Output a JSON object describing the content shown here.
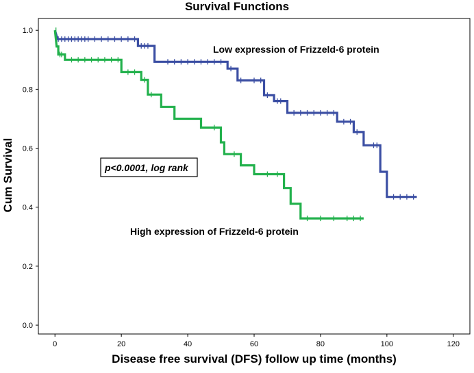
{
  "chart_data": {
    "type": "line",
    "step": true,
    "title": "Survival Functions",
    "xlabel": "Disease free survival (DFS) follow up time (months)",
    "ylabel": "Cum Survival",
    "xlim": [
      -5,
      125
    ],
    "ylim": [
      -0.03,
      1.04
    ],
    "x_ticks": [
      0,
      20,
      40,
      60,
      80,
      100,
      120
    ],
    "y_ticks": [
      0.0,
      0.2,
      0.4,
      0.6,
      0.8,
      1.0
    ],
    "y_tick_labels": [
      "0.0",
      "0.2",
      "0.4",
      "0.6",
      "0.8",
      "1.0"
    ],
    "grid": false,
    "series": [
      {
        "name": "Low expression of Frizzeld-6 protein",
        "color": "#3b4ea3",
        "points": [
          [
            0,
            1.0
          ],
          [
            0.8,
            0.97
          ],
          [
            25,
            0.97
          ],
          [
            25,
            0.947
          ],
          [
            30,
            0.947
          ],
          [
            30,
            0.893
          ],
          [
            52,
            0.893
          ],
          [
            52,
            0.87
          ],
          [
            55,
            0.87
          ],
          [
            55,
            0.83
          ],
          [
            63,
            0.83
          ],
          [
            63,
            0.78
          ],
          [
            66,
            0.78
          ],
          [
            66,
            0.76
          ],
          [
            70,
            0.76
          ],
          [
            70,
            0.72
          ],
          [
            85,
            0.72
          ],
          [
            85,
            0.69
          ],
          [
            90,
            0.69
          ],
          [
            90,
            0.655
          ],
          [
            93,
            0.655
          ],
          [
            93,
            0.61
          ],
          [
            98,
            0.61
          ],
          [
            98,
            0.52
          ],
          [
            100,
            0.52
          ],
          [
            100,
            0.435
          ],
          [
            109,
            0.435
          ]
        ],
        "censor_x": [
          1,
          2,
          3,
          4,
          5,
          6,
          7,
          8,
          9,
          10,
          12,
          14,
          16,
          18,
          20,
          22,
          24,
          26,
          27,
          28,
          34,
          36,
          38,
          40,
          42,
          44,
          46,
          48,
          50,
          53,
          56,
          60,
          62,
          64,
          67,
          68,
          72,
          74,
          76,
          78,
          80,
          82,
          84,
          87,
          89,
          91,
          96,
          97,
          102,
          104,
          106,
          108
        ]
      },
      {
        "name": "High expression of Frizzeld-6 protein",
        "color": "#22b14c",
        "points": [
          [
            0,
            1.0
          ],
          [
            0.5,
            0.945
          ],
          [
            1,
            0.945
          ],
          [
            1,
            0.918
          ],
          [
            3,
            0.918
          ],
          [
            3,
            0.9
          ],
          [
            20,
            0.9
          ],
          [
            20,
            0.858
          ],
          [
            26,
            0.858
          ],
          [
            26,
            0.832
          ],
          [
            28,
            0.832
          ],
          [
            28,
            0.782
          ],
          [
            32,
            0.782
          ],
          [
            32,
            0.74
          ],
          [
            36,
            0.74
          ],
          [
            36,
            0.7
          ],
          [
            44,
            0.7
          ],
          [
            44,
            0.67
          ],
          [
            50,
            0.67
          ],
          [
            50,
            0.62
          ],
          [
            51,
            0.62
          ],
          [
            51,
            0.58
          ],
          [
            56,
            0.58
          ],
          [
            56,
            0.542
          ],
          [
            60,
            0.542
          ],
          [
            60,
            0.512
          ],
          [
            69,
            0.512
          ],
          [
            69,
            0.465
          ],
          [
            71,
            0.465
          ],
          [
            71,
            0.412
          ],
          [
            74,
            0.412
          ],
          [
            74,
            0.362
          ],
          [
            93,
            0.362
          ]
        ],
        "censor_x": [
          0.3,
          1.5,
          2,
          5,
          7,
          9,
          11,
          13,
          15,
          17,
          19,
          22,
          24,
          27,
          29,
          48,
          54,
          64,
          67,
          76,
          80,
          84,
          88,
          90,
          92
        ]
      }
    ],
    "annotations": {
      "low_label": "Low expression of Frizzeld-6 protein",
      "high_label": "High expression of Frizzeld-6 protein",
      "pvalue": "p<0.0001, log rank"
    }
  }
}
